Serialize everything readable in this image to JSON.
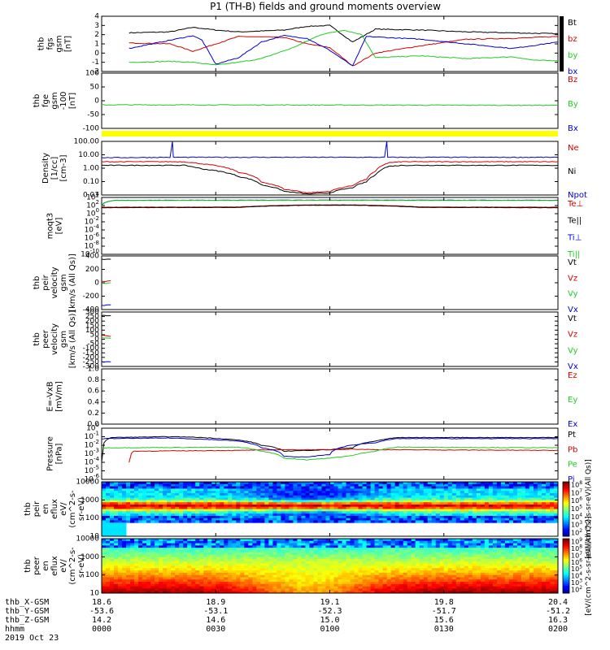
{
  "title": "P1 (TH-B) fields and ground moments overview",
  "chart_data": [
    {
      "type": "line",
      "id": "fgs_gsm",
      "ylabel": [
        "thb",
        "fgs",
        "gsm",
        "[nT]"
      ],
      "ylim": [
        -2,
        4
      ],
      "yticks": [
        "4",
        "3",
        "2",
        "1",
        "0",
        "-1",
        "-2"
      ],
      "side_bar": "black",
      "series": [
        {
          "name": "Bt",
          "color": "#000000",
          "values": [
            [
              0.06,
              2.2
            ],
            [
              0.15,
              2.3
            ],
            [
              0.2,
              2.8
            ],
            [
              0.25,
              2.5
            ],
            [
              0.3,
              2.3
            ],
            [
              0.4,
              2.5
            ],
            [
              0.45,
              2.9
            ],
            [
              0.5,
              3.0
            ],
            [
              0.55,
              1.2
            ],
            [
              0.6,
              2.6
            ],
            [
              0.7,
              2.5
            ],
            [
              0.8,
              2.3
            ],
            [
              0.9,
              2.2
            ],
            [
              1.0,
              2.1
            ]
          ]
        },
        {
          "name": "bz",
          "color": "#d40000",
          "values": [
            [
              0.06,
              1.1
            ],
            [
              0.15,
              1.0
            ],
            [
              0.2,
              0.2
            ],
            [
              0.25,
              1.0
            ],
            [
              0.3,
              1.8
            ],
            [
              0.4,
              1.7
            ],
            [
              0.45,
              1.0
            ],
            [
              0.5,
              0.6
            ],
            [
              0.55,
              -1.4
            ],
            [
              0.6,
              0.0
            ],
            [
              0.7,
              0.8
            ],
            [
              0.8,
              1.5
            ],
            [
              0.9,
              1.6
            ],
            [
              1.0,
              1.8
            ]
          ]
        },
        {
          "name": "by",
          "color": "#1fcc1f",
          "values": [
            [
              0.06,
              -1.0
            ],
            [
              0.15,
              -0.9
            ],
            [
              0.2,
              -1.0
            ],
            [
              0.25,
              -1.3
            ],
            [
              0.3,
              -1.0
            ],
            [
              0.35,
              -0.6
            ],
            [
              0.42,
              0.6
            ],
            [
              0.48,
              2.0
            ],
            [
              0.53,
              2.5
            ],
            [
              0.57,
              2.0
            ],
            [
              0.6,
              -0.5
            ],
            [
              0.7,
              -0.3
            ],
            [
              0.8,
              -0.6
            ],
            [
              0.9,
              -0.4
            ],
            [
              0.95,
              -0.8
            ],
            [
              1.0,
              -0.8
            ]
          ]
        },
        {
          "name": "bx",
          "color": "#0000d4",
          "values": [
            [
              0.06,
              0.5
            ],
            [
              0.15,
              1.4
            ],
            [
              0.2,
              1.9
            ],
            [
              0.22,
              1.4
            ],
            [
              0.25,
              -1.2
            ],
            [
              0.3,
              -0.5
            ],
            [
              0.35,
              1.2
            ],
            [
              0.4,
              1.9
            ],
            [
              0.45,
              1.6
            ],
            [
              0.5,
              0.3
            ],
            [
              0.55,
              -1.4
            ],
            [
              0.58,
              1.8
            ],
            [
              0.7,
              1.5
            ],
            [
              0.8,
              1.0
            ],
            [
              0.9,
              0.5
            ],
            [
              1.0,
              1.2
            ]
          ]
        }
      ]
    },
    {
      "type": "line",
      "id": "fge_gsm",
      "ylabel": [
        "thb",
        "fge",
        "gsm",
        "-100",
        "[nT]"
      ],
      "ylim": [
        -130,
        100
      ],
      "yticks": [
        "100",
        "50",
        "0",
        "-50",
        "-100"
      ],
      "series": [
        {
          "name": "Bz",
          "color": "#d40000",
          "values": []
        },
        {
          "name": "By",
          "color": "#1fcc1f",
          "values": [
            [
              0.0,
              -32
            ],
            [
              0.5,
              -33
            ],
            [
              1.0,
              -34
            ]
          ]
        },
        {
          "name": "Bx",
          "color": "#0000d4",
          "values": []
        }
      ]
    },
    {
      "type": "line",
      "id": "density",
      "ylabel": [
        "Density",
        "[1/cc]",
        "[cm-3]"
      ],
      "yscale": "log",
      "ylim": [
        0.01,
        300
      ],
      "yticks": [
        "100.00",
        "10.00",
        "1.00",
        "0.10",
        "0.01"
      ],
      "series": [
        {
          "name": "Ne",
          "color": "#d40000",
          "values": [
            [
              0.0,
              6
            ],
            [
              0.15,
              6
            ],
            [
              0.18,
              6
            ],
            [
              0.22,
              4
            ],
            [
              0.3,
              0.8
            ],
            [
              0.35,
              0.12
            ],
            [
              0.4,
              0.03
            ],
            [
              0.45,
              0.015
            ],
            [
              0.5,
              0.02
            ],
            [
              0.55,
              0.06
            ],
            [
              0.58,
              0.2
            ],
            [
              0.6,
              0.9
            ],
            [
              0.63,
              5
            ],
            [
              0.66,
              6
            ],
            [
              1.0,
              6
            ]
          ]
        },
        {
          "name": "Ni",
          "color": "#000000",
          "values": [
            [
              0.0,
              3
            ],
            [
              0.18,
              3
            ],
            [
              0.22,
              1.5
            ],
            [
              0.3,
              0.35
            ],
            [
              0.35,
              0.07
            ],
            [
              0.4,
              0.02
            ],
            [
              0.45,
              0.012
            ],
            [
              0.5,
              0.015
            ],
            [
              0.55,
              0.04
            ],
            [
              0.58,
              0.12
            ],
            [
              0.6,
              0.45
            ],
            [
              0.63,
              2.5
            ],
            [
              0.66,
              3
            ],
            [
              1.0,
              3
            ]
          ]
        },
        {
          "name": "Npot",
          "color": "#0000d4",
          "values": [
            [
              0.0,
              13
            ],
            [
              0.15,
              14
            ],
            [
              0.155,
              300
            ],
            [
              0.157,
              14
            ],
            [
              0.3,
              14
            ],
            [
              0.6,
              14
            ],
            [
              0.62,
              14
            ],
            [
              0.625,
              300
            ],
            [
              0.627,
              14
            ],
            [
              1.0,
              14
            ]
          ]
        }
      ]
    },
    {
      "type": "line",
      "id": "moqt3",
      "ylabel": [
        "moqt3",
        "[eV]"
      ],
      "yscale": "log",
      "ylim": [
        1e-10,
        10000.0
      ],
      "yticks": [
        "10^4",
        "10^2",
        "10^0",
        "10^-2",
        "10^-4",
        "10^-6",
        "10^-8",
        "10^-10"
      ],
      "series": [
        {
          "name": "Te⊥",
          "color": "#d40000",
          "values": [
            [
              0.0,
              40
            ],
            [
              0.3,
              45
            ],
            [
              0.45,
              150
            ],
            [
              0.55,
              150
            ],
            [
              0.7,
              45
            ],
            [
              1.0,
              40
            ]
          ]
        },
        {
          "name": "Te||",
          "color": "#000000",
          "values": [
            [
              0.0,
              30
            ],
            [
              0.3,
              35
            ],
            [
              0.45,
              120
            ],
            [
              0.55,
              120
            ],
            [
              0.7,
              35
            ],
            [
              1.0,
              30
            ]
          ]
        },
        {
          "name": "Ti⊥",
          "color": "#0000d4",
          "values": [
            [
              0.0,
              90
            ],
            [
              0.03,
              2000
            ],
            [
              0.5,
              2200
            ],
            [
              1.0,
              2000
            ]
          ]
        },
        {
          "name": "Ti||",
          "color": "#1fcc1f",
          "values": [
            [
              0.0,
              80
            ],
            [
              0.03,
              1800
            ],
            [
              0.5,
              2000
            ],
            [
              1.0,
              1800
            ]
          ]
        }
      ]
    },
    {
      "type": "line",
      "id": "peir_velocity",
      "ylabel": [
        "thb",
        "peir",
        "velocity",
        "gsm",
        "[km/s (All Qs)]"
      ],
      "ylim": [
        -400,
        400
      ],
      "yticks": [
        "400",
        "200",
        "0",
        "-200",
        "-400"
      ],
      "series": [
        {
          "name": "Vt",
          "color": "#000000",
          "values": [
            [
              0.0,
              350
            ],
            [
              0.02,
              350
            ]
          ]
        },
        {
          "name": "Vz",
          "color": "#d40000",
          "values": [
            [
              0.0,
              20
            ],
            [
              0.02,
              30
            ]
          ]
        },
        {
          "name": "Vy",
          "color": "#1fcc1f",
          "values": [
            [
              0.0,
              -10
            ],
            [
              0.02,
              0
            ]
          ]
        },
        {
          "name": "Vx",
          "color": "#0000d4",
          "values": [
            [
              0.0,
              -340
            ],
            [
              0.02,
              -330
            ]
          ]
        }
      ]
    },
    {
      "type": "line",
      "id": "peer_velocity",
      "ylabel": [
        "thb",
        "peer",
        "velocity",
        "gsm",
        "[km/s (All Qs)]"
      ],
      "ylim": [
        -300,
        300
      ],
      "yticks": [
        "300",
        "250",
        "200",
        "150",
        "100",
        "50",
        "0",
        "-50",
        "-100",
        "-150",
        "-200",
        "-250",
        "-300"
      ],
      "series": [
        {
          "name": "Vt",
          "color": "#000000",
          "values": [
            [
              0.0,
              260
            ],
            [
              0.02,
              260
            ]
          ]
        },
        {
          "name": "Vz",
          "color": "#d40000",
          "values": [
            [
              0.0,
              40
            ],
            [
              0.02,
              30
            ]
          ]
        },
        {
          "name": "Vy",
          "color": "#1fcc1f",
          "values": [
            [
              0.0,
              20
            ],
            [
              0.02,
              10
            ]
          ]
        },
        {
          "name": "Vx",
          "color": "#0000d4",
          "values": [
            [
              0.0,
              -250
            ],
            [
              0.02,
              -250
            ]
          ]
        }
      ]
    },
    {
      "type": "line",
      "id": "efield",
      "ylabel": [
        "E=-VxB",
        "[mV/m]"
      ],
      "ylim": [
        0,
        1
      ],
      "yticks": [
        "1.0",
        "0.8",
        "0.6",
        "0.4",
        "0.2",
        "0.0"
      ],
      "series": [
        {
          "name": "Ez",
          "color": "#d40000",
          "values": []
        },
        {
          "name": "Ey",
          "color": "#1fcc1f",
          "values": []
        },
        {
          "name": "Ex",
          "color": "#0000d4",
          "values": []
        }
      ]
    },
    {
      "type": "line",
      "id": "pressure",
      "ylabel": [
        "Pressure",
        "[nPa]"
      ],
      "yscale": "log",
      "ylim": [
        1e-06,
        1
      ],
      "yticks": [
        "10^0",
        "10^-1",
        "10^-2",
        "10^-3",
        "10^-4",
        "10^-5",
        "10^-6"
      ],
      "series": [
        {
          "name": "Pt",
          "color": "#000000",
          "values": [
            [
              0.0,
              0.0001
            ],
            [
              0.02,
              0.08
            ],
            [
              0.15,
              0.1
            ],
            [
              0.2,
              0.09
            ],
            [
              0.3,
              0.04
            ],
            [
              0.35,
              0.01
            ],
            [
              0.4,
              0.002
            ],
            [
              0.5,
              0.003
            ],
            [
              0.55,
              0.005
            ],
            [
              0.6,
              0.03
            ],
            [
              0.65,
              0.08
            ],
            [
              1.0,
              0.08
            ]
          ]
        },
        {
          "name": "Pb",
          "color": "#d40000",
          "values": [
            [
              0.06,
              0.0001
            ],
            [
              0.07,
              0.002
            ],
            [
              0.3,
              0.0025
            ],
            [
              0.4,
              0.003
            ],
            [
              0.5,
              0.003
            ],
            [
              0.55,
              0.0035
            ],
            [
              0.6,
              0.003
            ],
            [
              1.0,
              0.0025
            ]
          ]
        },
        {
          "name": "Pe",
          "color": "#1fcc1f",
          "values": [
            [
              0.0,
              0.005
            ],
            [
              0.3,
              0.006
            ],
            [
              0.35,
              0.002
            ],
            [
              0.4,
              0.0003
            ],
            [
              0.45,
              0.0002
            ],
            [
              0.5,
              0.0003
            ],
            [
              0.55,
              0.0006
            ],
            [
              0.6,
              0.002
            ],
            [
              0.65,
              0.006
            ],
            [
              1.0,
              0.005
            ]
          ]
        },
        {
          "name": "Pi",
          "color": "#0000d4",
          "values": [
            [
              0.0,
              0.06
            ],
            [
              0.15,
              0.07
            ],
            [
              0.3,
              0.03
            ],
            [
              0.35,
              0.005
            ],
            [
              0.4,
              0.0005
            ],
            [
              0.45,
              0.0004
            ],
            [
              0.5,
              0.0008
            ],
            [
              0.6,
              0.02
            ],
            [
              0.65,
              0.06
            ],
            [
              1.0,
              0.06
            ]
          ]
        }
      ]
    },
    {
      "type": "heatmap",
      "id": "peir_eflux",
      "ylabel": [
        "thb",
        "peir",
        "en",
        "eflux",
        "eV/",
        "(cm^2-s-",
        "sr-eV)"
      ],
      "yscale": "log",
      "ylim": [
        5,
        20000
      ],
      "yticks": [
        "10000",
        "1000",
        "100",
        "10"
      ],
      "colorbar": {
        "ticks": [
          "10^8",
          "10^7",
          "10^6",
          "10^5",
          "10^4",
          "10^3",
          "10^2"
        ],
        "label": "[eV/(cm^2-s-sr-eV)(All Qs)]"
      }
    },
    {
      "type": "heatmap",
      "id": "peer_eflux",
      "ylabel": [
        "thb",
        "peer",
        "en",
        "eflux",
        "eV/",
        "(cm^2-s-",
        "sr-eV)"
      ],
      "yscale": "log",
      "ylim": [
        5,
        20000
      ],
      "yticks": [
        "10000",
        "1000",
        "100",
        "10"
      ],
      "colorbar": {
        "ticks": [
          "10^9",
          "10^8",
          "10^7",
          "10^6",
          "10^5",
          "10^4",
          "10^3",
          "10^2"
        ],
        "label": "[eV/(cm^2-s-sr-eV)(All Qs)]"
      }
    }
  ],
  "x_axis": {
    "row_labels": [
      "thb_X-GSM",
      "thb_Y-GSM",
      "thb_Z-GSM",
      "hhmm",
      "2019 Oct 23"
    ],
    "columns": [
      [
        "18.6",
        "-53.6",
        "14.2",
        "0000"
      ],
      [
        "18.9",
        "-53.1",
        "14.6",
        "0030"
      ],
      [
        "19.1",
        "-52.3",
        "15.0",
        "0100"
      ],
      [
        "19.8",
        "-51.7",
        "15.6",
        "0130"
      ],
      [
        "20.4",
        "-51.2",
        "16.3",
        "0200"
      ]
    ]
  }
}
